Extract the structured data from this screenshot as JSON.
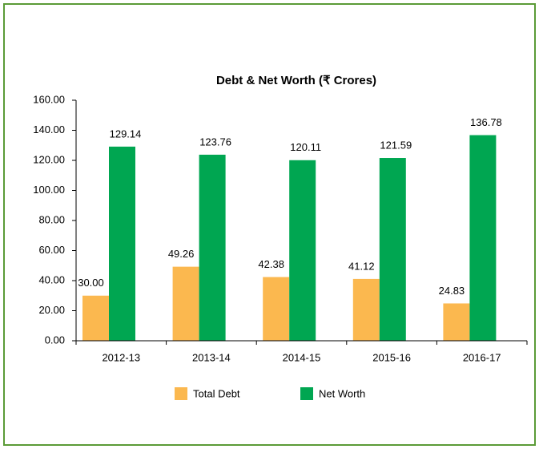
{
  "chart_data": {
    "type": "bar",
    "title": "Debt & Net Worth (₹ Crores)",
    "categories": [
      "2012-13",
      "2013-14",
      "2014-15",
      "2015-16",
      "2016-17"
    ],
    "series": [
      {
        "name": "Total Debt",
        "color": "#fbb84f",
        "values": [
          30.0,
          49.26,
          42.38,
          41.12,
          24.83
        ],
        "value_labels": [
          "30.00",
          "49.26",
          "42.38",
          "41.12",
          "24.83"
        ]
      },
      {
        "name": "Net Worth",
        "color": "#00a651",
        "values": [
          129.14,
          123.76,
          120.11,
          121.59,
          136.78
        ],
        "value_labels": [
          "129.14",
          "123.76",
          "120.11",
          "121.59",
          "136.78"
        ]
      }
    ],
    "ylim": [
      0,
      160
    ],
    "yticks": [
      {
        "value": 0,
        "label": "0.00"
      },
      {
        "value": 20,
        "label": "20.00"
      },
      {
        "value": 40,
        "label": "40.00"
      },
      {
        "value": 60,
        "label": "60.00"
      },
      {
        "value": 80,
        "label": "80.00"
      },
      {
        "value": 100,
        "label": "100.00"
      },
      {
        "value": 120,
        "label": "120.00"
      },
      {
        "value": 140,
        "label": "140.00"
      },
      {
        "value": 160,
        "label": "160.00"
      }
    ],
    "grid": false,
    "legend": "bottom"
  }
}
